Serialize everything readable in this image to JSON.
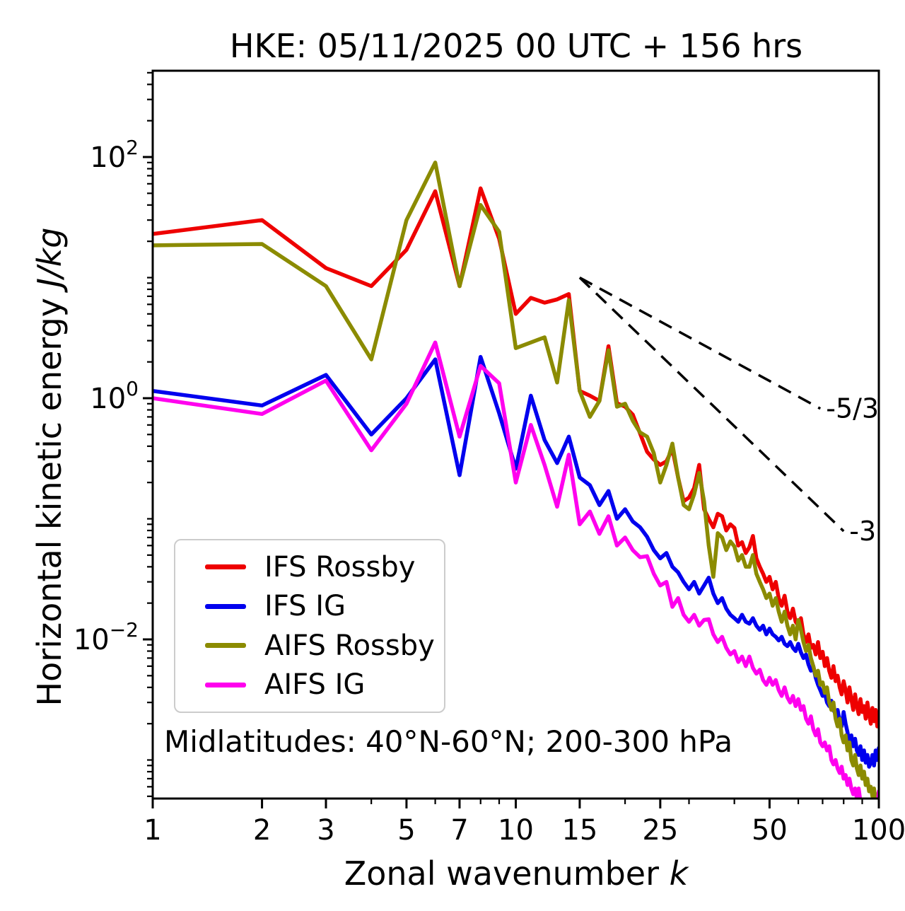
{
  "title": "HKE: 05/11/2025 00 UTC + 156 hrs",
  "xlabel": {
    "text": "Zonal wavenumber ",
    "math": "k"
  },
  "ylabel": {
    "text": "Horizontal kinetic energy ",
    "math": "J/kg"
  },
  "annotation": "Midlatitudes: 40°N-60°N; 200-300 hPa",
  "legend": {
    "position": "lower left"
  },
  "colors": {
    "ifs_rossby": "#ee0000",
    "ifs_ig": "#0000ee",
    "aifs_rossby": "#8b8b00",
    "aifs_ig": "#ff00ee",
    "guide": "#000000",
    "legend_border": "#cccccc",
    "spine": "#000000"
  },
  "chart_data": {
    "type": "line",
    "title": "HKE: 05/11/2025 00 UTC + 156 hrs",
    "xlabel": "Zonal wavenumber k",
    "ylabel": "Horizontal kinetic energy J/kg",
    "x_scale": "log",
    "y_scale": "log",
    "xlim": [
      1,
      100
    ],
    "ylim": [
      0.00048,
      520
    ],
    "grid": false,
    "legend_position": "lower left",
    "x": [
      1,
      2,
      3,
      4,
      5,
      6,
      7,
      8,
      9,
      10,
      11,
      12,
      13,
      14,
      15,
      16,
      17,
      18,
      19,
      20,
      21,
      22,
      23,
      24,
      25,
      26,
      27,
      28,
      29,
      30,
      31,
      32,
      33,
      34,
      35,
      36,
      37,
      38,
      39,
      40,
      41,
      42,
      43,
      44,
      45,
      46,
      47,
      48,
      49,
      50,
      51,
      52,
      53,
      54,
      55,
      56,
      57,
      58,
      59,
      60,
      61,
      62,
      63,
      64,
      65,
      66,
      67,
      68,
      69,
      70,
      71,
      72,
      73,
      74,
      75,
      76,
      77,
      78,
      79,
      80,
      81,
      82,
      83,
      84,
      85,
      86,
      87,
      88,
      89,
      90,
      91,
      92,
      93,
      94,
      95,
      96,
      97,
      98,
      99,
      100
    ],
    "series": [
      {
        "name": "IFS Rossby",
        "color": "#ee0000",
        "values": [
          23,
          30,
          12,
          8.5,
          17,
          52,
          8.5,
          55,
          21,
          5.0,
          6.8,
          6.2,
          6.6,
          7.3,
          1.15,
          1.05,
          0.95,
          2.7,
          0.91,
          0.85,
          0.73,
          0.51,
          0.36,
          0.31,
          0.28,
          0.3,
          0.38,
          0.22,
          0.14,
          0.15,
          0.18,
          0.28,
          0.12,
          0.1,
          0.085,
          0.11,
          0.105,
          0.08,
          0.09,
          0.084,
          0.06,
          0.064,
          0.052,
          0.058,
          0.072,
          0.047,
          0.04,
          0.035,
          0.03,
          0.033,
          0.026,
          0.03,
          0.022,
          0.019,
          0.023,
          0.017,
          0.015,
          0.018,
          0.014,
          0.013,
          0.015,
          0.011,
          0.0095,
          0.011,
          0.0085,
          0.009,
          0.0075,
          0.0095,
          0.007,
          0.0079,
          0.006,
          0.007,
          0.0055,
          0.0048,
          0.006,
          0.0045,
          0.005,
          0.004,
          0.0035,
          0.0045,
          0.0038,
          0.003,
          0.004,
          0.0032,
          0.0026,
          0.0035,
          0.0028,
          0.0024,
          0.0032,
          0.0025,
          0.0028,
          0.0022,
          0.003,
          0.0024,
          0.002,
          0.0027,
          0.0021,
          0.0026,
          0.0019,
          0.0025
        ]
      },
      {
        "name": "IFS IG",
        "color": "#0000ee",
        "values": [
          1.15,
          0.87,
          1.56,
          0.5,
          1.0,
          2.1,
          0.23,
          2.2,
          0.75,
          0.26,
          1.05,
          0.45,
          0.29,
          0.48,
          0.22,
          0.19,
          0.13,
          0.17,
          0.1,
          0.12,
          0.095,
          0.085,
          0.071,
          0.055,
          0.047,
          0.052,
          0.04,
          0.036,
          0.03,
          0.026,
          0.03,
          0.024,
          0.028,
          0.0325,
          0.024,
          0.02,
          0.022,
          0.018,
          0.016,
          0.015,
          0.014,
          0.016,
          0.014,
          0.0135,
          0.015,
          0.013,
          0.012,
          0.013,
          0.011,
          0.0123,
          0.011,
          0.0105,
          0.0098,
          0.0105,
          0.0092,
          0.0088,
          0.0095,
          0.0085,
          0.008,
          0.0092,
          0.0078,
          0.007,
          0.0075,
          0.0062,
          0.0055,
          0.006,
          0.0048,
          0.0042,
          0.0038,
          0.0034,
          0.0036,
          0.003,
          0.0028,
          0.0031,
          0.0026,
          0.0024,
          0.0026,
          0.0021,
          0.0019,
          0.0025,
          0.002,
          0.0017,
          0.00135,
          0.0016,
          0.0013,
          0.0015,
          0.0012,
          0.0011,
          0.0013,
          0.001,
          0.0012,
          0.00095,
          0.0011,
          0.00088,
          0.00095,
          0.0011,
          0.0009,
          0.0012,
          0.001,
          0.00126
        ]
      },
      {
        "name": "AIFS Rossby",
        "color": "#8b8b00",
        "values": [
          18.5,
          19,
          8.5,
          2.1,
          30,
          90,
          8.5,
          40,
          24,
          2.6,
          2.9,
          3.2,
          1.35,
          6.5,
          1.15,
          0.7,
          0.95,
          2.5,
          0.85,
          0.9,
          0.65,
          0.52,
          0.48,
          0.35,
          0.2,
          0.28,
          0.42,
          0.22,
          0.13,
          0.12,
          0.16,
          0.24,
          0.14,
          0.06,
          0.033,
          0.076,
          0.07,
          0.055,
          0.065,
          0.059,
          0.045,
          0.05,
          0.04,
          0.04,
          0.05,
          0.035,
          0.03,
          0.026,
          0.022,
          0.024,
          0.019,
          0.022,
          0.017,
          0.014,
          0.017,
          0.013,
          0.011,
          0.013,
          0.01,
          0.0145,
          0.012,
          0.0095,
          0.008,
          0.009,
          0.007,
          0.006,
          0.005,
          0.0055,
          0.0042,
          0.0044,
          0.0036,
          0.004,
          0.003,
          0.0026,
          0.003,
          0.0022,
          0.0019,
          0.0022,
          0.0016,
          0.0014,
          0.0016,
          0.0012,
          0.0014,
          0.001,
          0.0009,
          0.0011,
          0.00085,
          0.00075,
          0.0009,
          0.0007,
          0.0008,
          0.00062,
          0.0007,
          0.00055,
          0.0006,
          0.0005,
          0.00058,
          0.00045,
          0.00052,
          0.00042
        ]
      },
      {
        "name": "AIFS IG",
        "color": "#ff00ee",
        "values": [
          1.0,
          0.74,
          1.4,
          0.37,
          0.9,
          2.9,
          0.48,
          1.85,
          1.33,
          0.2,
          0.6,
          0.28,
          0.126,
          0.34,
          0.09,
          0.115,
          0.075,
          0.105,
          0.06,
          0.07,
          0.055,
          0.048,
          0.049,
          0.035,
          0.028,
          0.03,
          0.0186,
          0.022,
          0.016,
          0.014,
          0.016,
          0.013,
          0.0145,
          0.0147,
          0.011,
          0.0095,
          0.0105,
          0.0085,
          0.0075,
          0.008,
          0.0065,
          0.0072,
          0.006,
          0.0072,
          0.0058,
          0.0052,
          0.0056,
          0.0046,
          0.0042,
          0.0048,
          0.0042,
          0.0046,
          0.0038,
          0.0034,
          0.004,
          0.0033,
          0.003,
          0.0034,
          0.0028,
          0.0032,
          0.0026,
          0.0028,
          0.0022,
          0.002,
          0.0023,
          0.0018,
          0.0016,
          0.0018,
          0.0014,
          0.0013,
          0.0014,
          0.0012,
          0.0013,
          0.001,
          0.00092,
          0.001,
          0.00085,
          0.00078,
          0.00088,
          0.0007,
          0.00075,
          0.00062,
          0.0007,
          0.00058,
          0.00052,
          0.00058,
          0.00048,
          0.00058,
          0.00045,
          0.0004,
          0.00044,
          0.00036,
          0.0004,
          0.00032,
          0.00036,
          0.0003,
          0.00034,
          0.00028,
          0.0004,
          0.00055
        ]
      }
    ],
    "x_ticks": {
      "major": [
        {
          "v": 1,
          "label": "1"
        },
        {
          "v": 2,
          "label": "2"
        },
        {
          "v": 3,
          "label": "3"
        },
        {
          "v": 5,
          "label": "5"
        },
        {
          "v": 7,
          "label": "7"
        },
        {
          "v": 10,
          "label": "10"
        },
        {
          "v": 15,
          "label": "15"
        },
        {
          "v": 25,
          "label": "25"
        },
        {
          "v": 50,
          "label": "50"
        },
        {
          "v": 100,
          "label": "100"
        }
      ],
      "minor": [
        4,
        6,
        8,
        9,
        20,
        30,
        40,
        60,
        70,
        80,
        90
      ]
    },
    "y_ticks": {
      "major": [
        {
          "v": 100,
          "base": "10",
          "exp": "2"
        },
        {
          "v": 1,
          "base": "10",
          "exp": "0"
        },
        {
          "v": 0.01,
          "base": "10",
          "exp": "−2"
        }
      ],
      "unlabeled_decades": [
        10,
        0.1,
        0.001
      ]
    },
    "guides": [
      {
        "label": "-5/3",
        "x": [
          15,
          69
        ],
        "y": [
          10,
          0.82
        ],
        "style": "dashed"
      },
      {
        "label": "-3",
        "x": [
          15,
          80
        ],
        "y": [
          10,
          0.079
        ],
        "style": "dashed"
      }
    ],
    "annotations": [
      {
        "text": "Midlatitudes: 40°N-60°N; 200-300 hPa",
        "position": "lower left inside axes"
      }
    ]
  }
}
